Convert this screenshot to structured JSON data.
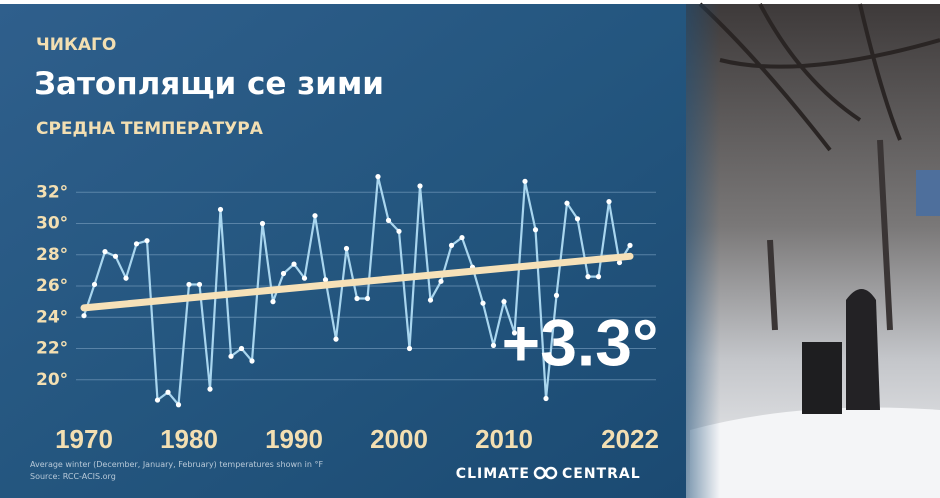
{
  "chart_data": {
    "type": "line",
    "kicker": "ЧИКАГО",
    "title": "Затоплящи се зими",
    "subtitle": "СРЕДНА ТЕМПЕРАТУРА",
    "annotation": "+3.3°",
    "notes": [
      "Average winter (December, January, February) temperatures shown in °F",
      "Source: RCC-ACIS.org"
    ],
    "logo": [
      "CLIMATE",
      "CENTRAL"
    ],
    "x": [
      1970,
      1971,
      1972,
      1973,
      1974,
      1975,
      1976,
      1977,
      1978,
      1979,
      1980,
      1981,
      1982,
      1983,
      1984,
      1985,
      1986,
      1987,
      1988,
      1989,
      1990,
      1991,
      1992,
      1993,
      1994,
      1995,
      1996,
      1997,
      1998,
      1999,
      2000,
      2001,
      2002,
      2003,
      2004,
      2005,
      2006,
      2007,
      2008,
      2009,
      2010,
      2011,
      2012,
      2013,
      2014,
      2015,
      2016,
      2017,
      2018,
      2019,
      2020,
      2021,
      2022
    ],
    "series": [
      {
        "name": "Average winter temperature",
        "color": "#a9d6ef",
        "values": [
          24.1,
          26.1,
          28.2,
          27.9,
          26.5,
          28.7,
          28.9,
          18.7,
          19.2,
          18.4,
          26.1,
          26.1,
          19.4,
          30.9,
          21.5,
          22.0,
          21.2,
          30.0,
          25.0,
          26.8,
          27.4,
          26.5,
          30.5,
          26.4,
          22.6,
          28.4,
          25.2,
          25.2,
          33.0,
          30.2,
          29.5,
          22.0,
          32.4,
          25.1,
          26.3,
          28.6,
          29.1,
          27.2,
          24.9,
          22.2,
          25.0,
          23.0,
          32.7,
          29.6,
          18.8,
          25.4,
          31.3,
          30.3,
          26.6,
          26.6,
          31.4,
          27.5,
          28.6
        ]
      }
    ],
    "trend": {
      "x": [
        1970,
        2022
      ],
      "values": [
        24.6,
        27.9
      ],
      "color": "#f6e1b8"
    },
    "xlim": [
      1970,
      2022
    ],
    "xticks": [
      1970,
      1980,
      1990,
      2000,
      2010,
      2022
    ],
    "ylim": [
      18,
      34
    ],
    "yticks": [
      {
        "value": 20,
        "label": "20°"
      },
      {
        "value": 22,
        "label": "22°"
      },
      {
        "value": 24,
        "label": "24°"
      },
      {
        "value": 26,
        "label": "26°"
      },
      {
        "value": 28,
        "label": "28°"
      },
      {
        "value": 30,
        "label": "30°"
      },
      {
        "value": 32,
        "label": "32°"
      }
    ],
    "grid": true
  }
}
